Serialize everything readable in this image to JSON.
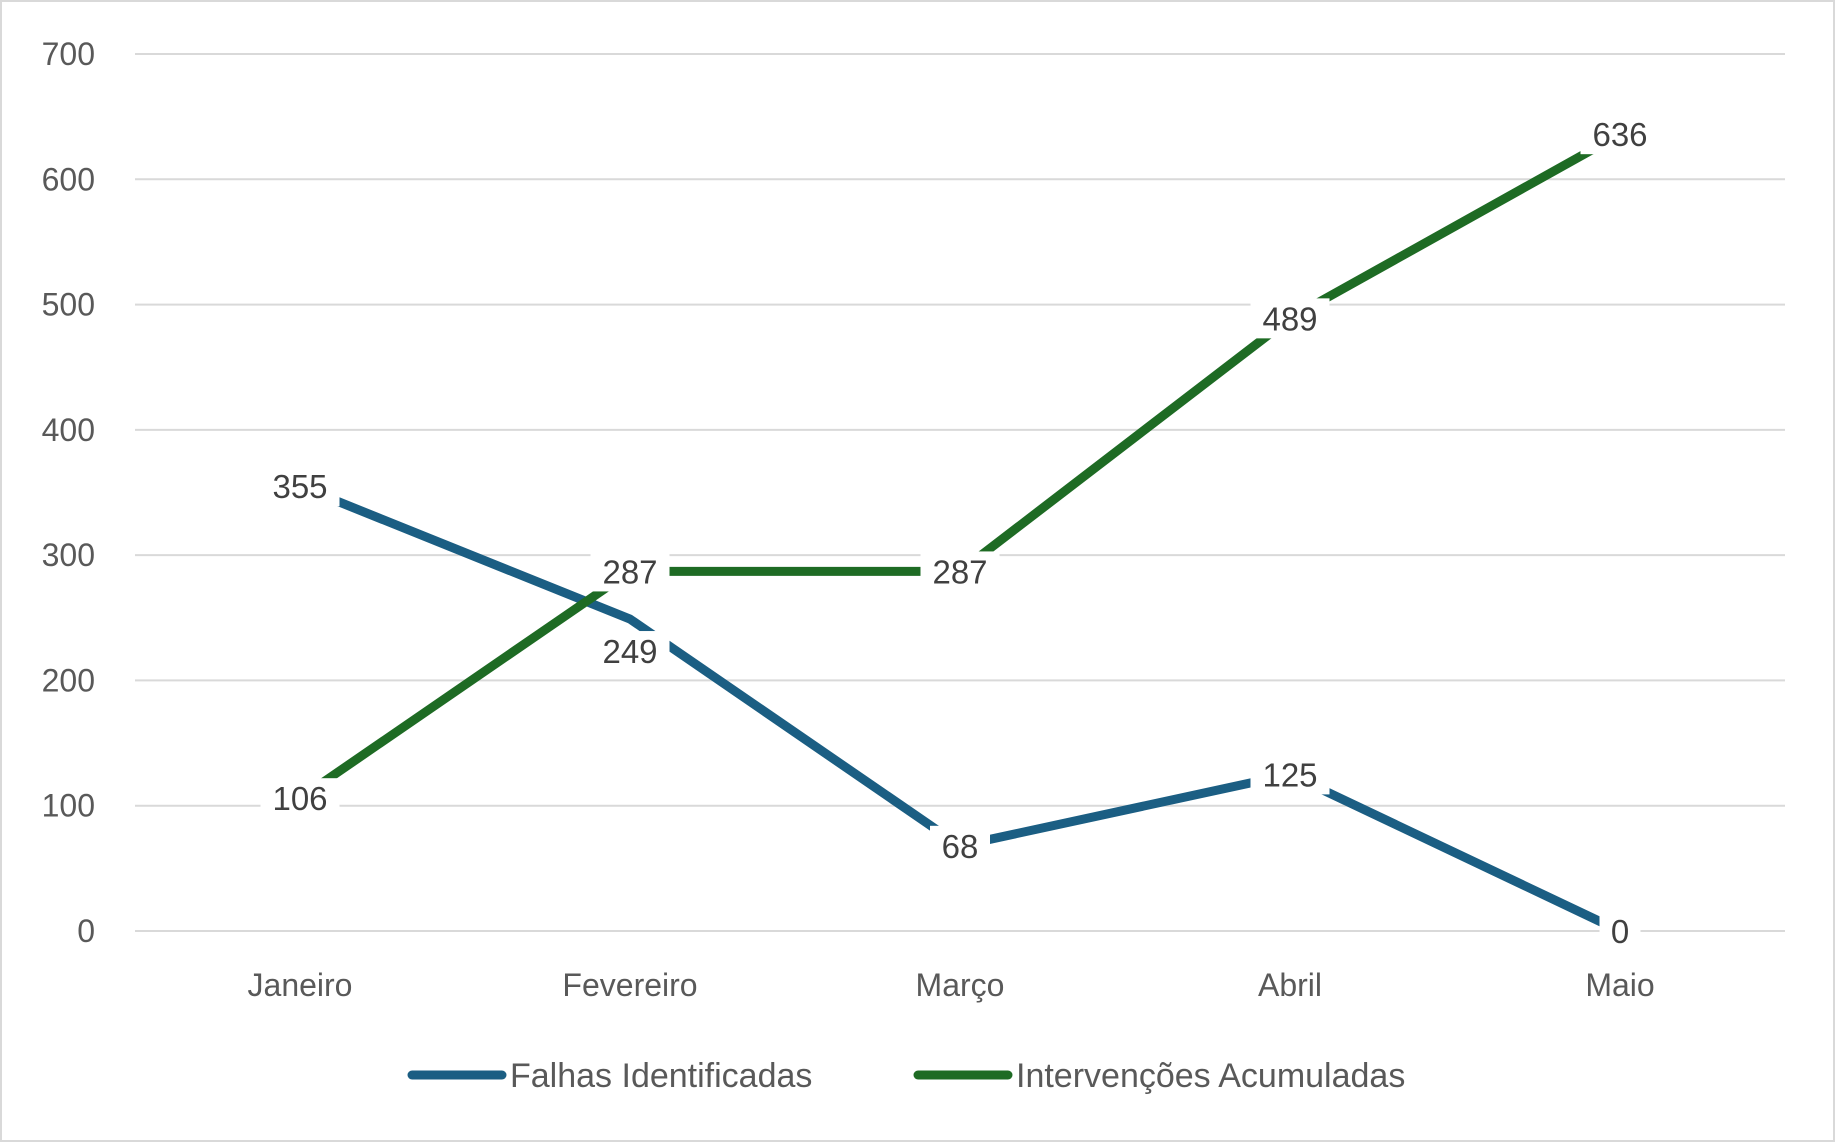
{
  "chart_data": {
    "type": "line",
    "title": "",
    "xlabel": "",
    "ylabel": "",
    "categories": [
      "Janeiro",
      "Fevereiro",
      "Março",
      "Abril",
      "Maio"
    ],
    "ylim": [
      0,
      700
    ],
    "yticks": [
      0,
      100,
      200,
      300,
      400,
      500,
      600,
      700
    ],
    "grid": true,
    "legend_position": "bottom",
    "series": [
      {
        "name": "Falhas Identificadas",
        "color": "#1b5e83",
        "values": [
          355,
          249,
          68,
          125,
          0
        ]
      },
      {
        "name": "Intervenções Acumuladas",
        "color": "#1e6b24",
        "values": [
          106,
          287,
          287,
          489,
          636
        ]
      }
    ]
  }
}
